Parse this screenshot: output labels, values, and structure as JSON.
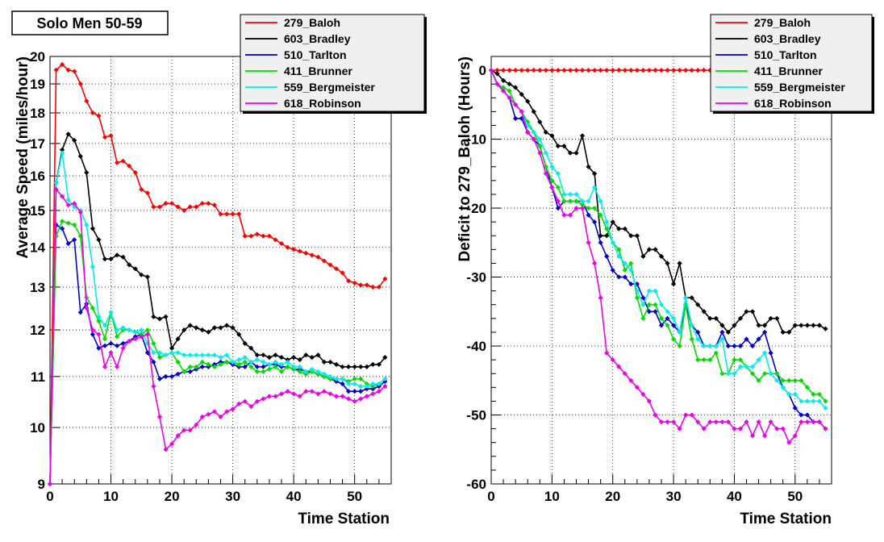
{
  "title": "Solo Men 50-59",
  "chart_data": [
    {
      "type": "line",
      "xlabel": "Time Station",
      "ylabel": "Average Speed (miles/hour)",
      "xlim": [
        0,
        56
      ],
      "ylim": [
        9,
        20
      ],
      "xticks": [
        0,
        10,
        20,
        30,
        40,
        50
      ],
      "yticks": [
        9,
        10,
        11,
        12,
        13,
        14,
        15,
        16,
        17,
        18,
        19,
        20
      ],
      "y_scale": "log",
      "grid": true,
      "legend_position": "top-right",
      "series": [
        {
          "name": "279_Baloh",
          "color": "#ff0000",
          "values": [
            9.0,
            19.5,
            19.7,
            19.5,
            19.45,
            19.0,
            18.4,
            18.0,
            17.9,
            17.2,
            17.25,
            16.4,
            16.45,
            16.3,
            16.1,
            15.6,
            15.5,
            15.1,
            15.1,
            15.2,
            15.2,
            15.1,
            15.0,
            15.1,
            15.1,
            15.2,
            15.2,
            15.15,
            14.9,
            14.9,
            14.9,
            14.9,
            14.3,
            14.3,
            14.35,
            14.3,
            14.3,
            14.2,
            14.1,
            14.0,
            13.95,
            13.9,
            13.85,
            13.8,
            13.75,
            13.65,
            13.55,
            13.45,
            13.35,
            13.15,
            13.1,
            13.05,
            13.05,
            13.0,
            13.0,
            13.2
          ]
        },
        {
          "name": "603_Bradley",
          "color": "#000000",
          "values": [
            9.0,
            15.8,
            16.8,
            17.3,
            17.1,
            16.6,
            16.1,
            14.5,
            14.2,
            13.7,
            13.7,
            13.8,
            13.75,
            13.55,
            13.45,
            13.3,
            13.25,
            12.3,
            12.25,
            12.3,
            11.6,
            11.8,
            12.0,
            12.1,
            12.05,
            12.0,
            11.95,
            12.05,
            12.05,
            12.1,
            12.05,
            11.9,
            11.7,
            11.6,
            11.45,
            11.45,
            11.4,
            11.45,
            11.4,
            11.35,
            11.4,
            11.35,
            11.45,
            11.4,
            11.45,
            11.3,
            11.3,
            11.25,
            11.2,
            11.2,
            11.2,
            11.2,
            11.2,
            11.25,
            11.25,
            11.4
          ]
        },
        {
          "name": "510_Tarlton",
          "color": "#0000cc",
          "values": [
            9.0,
            14.6,
            14.5,
            14.1,
            14.2,
            12.4,
            12.6,
            11.9,
            11.6,
            11.65,
            11.7,
            11.65,
            11.7,
            11.75,
            11.85,
            11.9,
            11.5,
            11.3,
            10.95,
            11.0,
            11.0,
            11.05,
            11.1,
            11.1,
            11.15,
            11.2,
            11.2,
            11.25,
            11.3,
            11.3,
            11.25,
            11.2,
            11.2,
            11.3,
            11.2,
            11.2,
            11.25,
            11.25,
            11.2,
            11.2,
            11.15,
            11.15,
            11.1,
            11.1,
            11.05,
            11.0,
            10.95,
            10.9,
            10.85,
            10.7,
            10.7,
            10.7,
            10.75,
            10.75,
            10.8,
            10.9
          ]
        },
        {
          "name": "411_Brunner",
          "color": "#00dd00",
          "values": [
            9.0,
            14.3,
            14.7,
            14.65,
            14.6,
            14.3,
            12.75,
            12.5,
            12.2,
            11.8,
            12.4,
            11.85,
            12.0,
            12.0,
            11.95,
            11.9,
            12.0,
            11.7,
            11.4,
            11.45,
            11.5,
            11.3,
            11.1,
            11.2,
            11.2,
            11.3,
            11.25,
            11.2,
            11.25,
            11.3,
            11.3,
            11.25,
            11.3,
            11.2,
            11.1,
            11.1,
            11.15,
            11.2,
            11.1,
            11.2,
            11.15,
            11.1,
            11.05,
            11.1,
            11.05,
            11.0,
            10.95,
            10.95,
            10.95,
            10.9,
            10.95,
            10.95,
            10.85,
            10.8,
            10.85,
            10.95
          ]
        },
        {
          "name": "559_Bergmeister",
          "color": "#00eeee",
          "values": [
            9.0,
            15.8,
            16.7,
            15.3,
            15.1,
            15.0,
            14.6,
            13.5,
            12.3,
            12.1,
            12.4,
            12.0,
            12.05,
            12.0,
            11.95,
            12.0,
            11.7,
            11.5,
            11.5,
            11.45,
            11.5,
            11.5,
            11.45,
            11.45,
            11.45,
            11.45,
            11.45,
            11.45,
            11.4,
            11.45,
            11.3,
            11.35,
            11.4,
            11.3,
            11.35,
            11.3,
            11.25,
            11.3,
            11.25,
            11.3,
            11.2,
            11.2,
            11.1,
            11.15,
            11.1,
            11.05,
            11.0,
            10.95,
            10.95,
            10.85,
            10.85,
            10.8,
            10.8,
            10.85,
            10.85,
            10.95
          ]
        },
        {
          "name": "618_Robinson",
          "color": "#ee00ee",
          "values": [
            9.0,
            15.6,
            15.4,
            15.15,
            15.2,
            14.95,
            12.5,
            12.0,
            11.9,
            11.2,
            11.5,
            11.2,
            11.6,
            11.75,
            11.8,
            11.85,
            11.9,
            10.8,
            10.2,
            9.6,
            9.7,
            9.85,
            9.95,
            9.95,
            10.05,
            10.2,
            10.25,
            10.3,
            10.2,
            10.3,
            10.35,
            10.45,
            10.5,
            10.4,
            10.5,
            10.55,
            10.6,
            10.6,
            10.65,
            10.7,
            10.65,
            10.6,
            10.7,
            10.7,
            10.65,
            10.7,
            10.65,
            10.6,
            10.6,
            10.55,
            10.5,
            10.55,
            10.6,
            10.65,
            10.7,
            10.8
          ]
        }
      ]
    },
    {
      "type": "line",
      "xlabel": "Time Station",
      "ylabel": "Deficit to 279_Baloh (Hours)",
      "xlim": [
        0,
        56
      ],
      "ylim": [
        -60,
        2
      ],
      "xticks": [
        0,
        10,
        20,
        30,
        40,
        50
      ],
      "yticks": [
        0,
        -10,
        -20,
        -30,
        -40,
        -50,
        -60
      ],
      "grid": true,
      "legend_position": "top-right",
      "series": [
        {
          "name": "279_Baloh",
          "color": "#ff0000",
          "values": [
            0,
            0,
            0,
            0,
            0,
            0,
            0,
            0,
            0,
            0,
            0,
            0,
            0,
            0,
            0,
            0,
            0,
            0,
            0,
            0,
            0,
            0,
            0,
            0,
            0,
            0,
            0,
            0,
            0,
            0,
            0,
            0,
            0,
            0,
            0,
            0,
            0,
            0,
            0,
            0,
            0,
            0,
            0,
            0,
            0,
            0,
            0,
            0,
            0,
            0,
            0,
            0,
            0,
            0,
            0,
            0
          ]
        },
        {
          "name": "603_Bradley",
          "color": "#000000",
          "values": [
            0,
            -0.5,
            -1.5,
            -2,
            -2.5,
            -3.5,
            -4.5,
            -6,
            -7.5,
            -9,
            -9.5,
            -11,
            -11,
            -12,
            -12,
            -9.5,
            -14,
            -15,
            -24,
            -24,
            -22,
            -23,
            -23,
            -24,
            -24,
            -27,
            -26,
            -26,
            -27,
            -28,
            -31,
            -28,
            -33,
            -33,
            -34,
            -35,
            -36,
            -36,
            -37,
            -38,
            -37,
            -36,
            -35,
            -35,
            -37,
            -37,
            -36,
            -36,
            -38,
            -38,
            -37,
            -37,
            -37,
            -37,
            -37,
            -37.5
          ]
        },
        {
          "name": "510_Tarlton",
          "color": "#0000cc",
          "values": [
            0,
            -2,
            -3,
            -4,
            -7,
            -7,
            -9,
            -10,
            -11,
            -14,
            -17,
            -20,
            -19,
            -19,
            -19,
            -19,
            -21,
            -22,
            -25,
            -27,
            -29,
            -30,
            -30,
            -31,
            -31,
            -33,
            -35,
            -35,
            -37,
            -36,
            -37,
            -38,
            -34,
            -37,
            -38,
            -40,
            -40,
            -40,
            -38,
            -40,
            -40,
            -40,
            -39,
            -40,
            -39,
            -38,
            -41,
            -44,
            -46,
            -47,
            -49,
            -50,
            -50,
            -51,
            -51,
            -52
          ]
        },
        {
          "name": "411_Brunner",
          "color": "#00dd00",
          "values": [
            0,
            -2,
            -2.5,
            -3,
            -5,
            -6,
            -7.5,
            -9,
            -11,
            -14,
            -16,
            -17,
            -19,
            -19,
            -19,
            -19.5,
            -20,
            -20,
            -21,
            -23,
            -25,
            -26,
            -29,
            -28,
            -33,
            -36,
            -34,
            -34,
            -36,
            -37,
            -39,
            -40,
            -34,
            -39,
            -42,
            -42,
            -42,
            -41,
            -44,
            -44,
            -42,
            -42,
            -43,
            -44,
            -45,
            -44,
            -44,
            -44,
            -45,
            -45,
            -45,
            -45,
            -46,
            -47,
            -47,
            -48
          ]
        },
        {
          "name": "559_Bergmeister",
          "color": "#00eeee",
          "values": [
            0,
            -2,
            -3,
            -4,
            -5,
            -6,
            -8,
            -9,
            -10,
            -12,
            -14,
            -15,
            -18,
            -18,
            -18,
            -19,
            -19,
            -17,
            -19,
            -22,
            -25,
            -27,
            -28,
            -29,
            -32,
            -34,
            -32,
            -32,
            -34,
            -35,
            -36,
            -38,
            -33,
            -37,
            -39,
            -40,
            -40,
            -40,
            -39,
            -44,
            -44,
            -43,
            -43,
            -43,
            -42,
            -41,
            -44,
            -45,
            -46,
            -47,
            -47,
            -48,
            -48,
            -48,
            -48,
            -49
          ]
        },
        {
          "name": "618_Robinson",
          "color": "#ee00ee",
          "values": [
            0,
            -2,
            -3,
            -4,
            -5,
            -6,
            -9,
            -10,
            -12,
            -15,
            -17,
            -19,
            -21,
            -21,
            -20,
            -20,
            -25,
            -28,
            -33,
            -41,
            -42,
            -43,
            -44,
            -45,
            -46,
            -47,
            -48,
            -50,
            -51,
            -51,
            -51,
            -52,
            -50,
            -50,
            -51,
            -52,
            -51,
            -51,
            -51,
            -51,
            -52,
            -52,
            -51,
            -53,
            -51,
            -53,
            -51,
            -52,
            -52,
            -54,
            -53,
            -51,
            -51,
            -51,
            -51,
            -52
          ]
        }
      ]
    }
  ]
}
